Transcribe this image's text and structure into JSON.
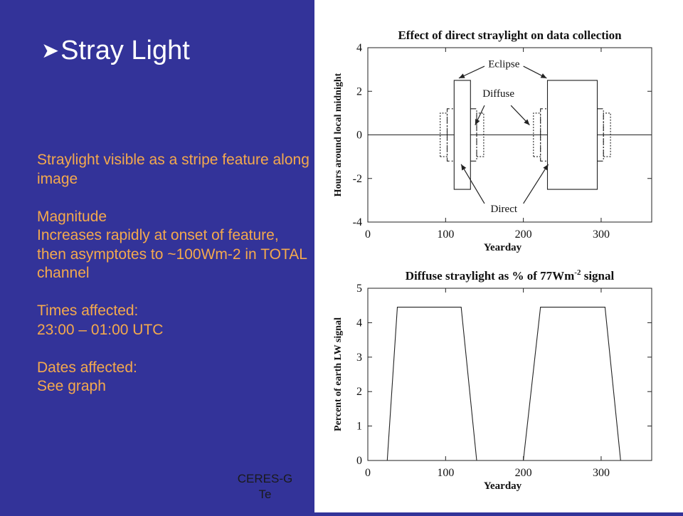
{
  "slide": {
    "title": "Stray Light",
    "title_bullet": "➤",
    "body": "Straylight visible as a stripe feature along image\n\nMagnitude\nIncreases rapidly at onset of feature, then asymptotes to ~100Wm-2 in TOTAL channel\n\nTimes affected:\n23:00 – 01:00 UTC\n\nDates affected:\nSee graph",
    "footer": "CERES-G\nTe",
    "colors": {
      "background": "#333399",
      "title": "#ffffff",
      "body": "#f4a94d"
    }
  },
  "chart_data": [
    {
      "type": "line",
      "title": "Effect of direct straylight on data collection",
      "xlabel": "Yearday",
      "ylabel": "Hours around local midnight",
      "xlim": [
        0,
        365
      ],
      "ylim": [
        -4,
        4
      ],
      "xticks": [
        0,
        100,
        200,
        300
      ],
      "yticks": [
        -4,
        -2,
        0,
        2,
        4
      ],
      "annotations": [
        "Eclipse",
        "Diffuse",
        "Direct"
      ],
      "series": [
        {
          "style": "solid",
          "x": [
            0,
            111,
            111,
            132,
            132,
            231,
            231,
            295,
            295,
            365
          ],
          "y": [
            0,
            0,
            2.5,
            2.5,
            0,
            0,
            2.5,
            2.5,
            0,
            0
          ]
        },
        {
          "style": "solid",
          "x": [
            111,
            111,
            132,
            132
          ],
          "y": [
            0,
            -2.5,
            -2.5,
            0
          ]
        },
        {
          "style": "solid",
          "x": [
            231,
            231,
            295,
            295
          ],
          "y": [
            0,
            -2.5,
            -2.5,
            0
          ]
        },
        {
          "style": "dash-dot",
          "x": [
            102,
            102,
            111
          ],
          "y": [
            0,
            1.2,
            1.2
          ]
        },
        {
          "style": "dash-dot",
          "x": [
            102,
            102,
            111
          ],
          "y": [
            0,
            -1.2,
            -1.2
          ]
        },
        {
          "style": "dash-dot",
          "x": [
            132,
            140,
            140
          ],
          "y": [
            1.2,
            1.2,
            0
          ]
        },
        {
          "style": "dash-dot",
          "x": [
            132,
            140,
            140
          ],
          "y": [
            -1.2,
            -1.2,
            0
          ]
        },
        {
          "style": "dash-dot",
          "x": [
            222,
            222,
            231
          ],
          "y": [
            0,
            1.2,
            1.2
          ]
        },
        {
          "style": "dash-dot",
          "x": [
            222,
            222,
            231
          ],
          "y": [
            0,
            -1.2,
            -1.2
          ]
        },
        {
          "style": "dash-dot",
          "x": [
            295,
            303,
            303
          ],
          "y": [
            1.2,
            1.2,
            0
          ]
        },
        {
          "style": "dash-dot",
          "x": [
            295,
            303,
            303
          ],
          "y": [
            -1.2,
            -1.2,
            0
          ]
        },
        {
          "style": "dotted",
          "x": [
            93,
            93,
            102,
            102,
            93
          ],
          "y": [
            -1,
            1,
            1,
            -1,
            -1
          ]
        },
        {
          "style": "dotted",
          "x": [
            140,
            140,
            149,
            149,
            140
          ],
          "y": [
            -1,
            1,
            1,
            -1,
            -1
          ]
        },
        {
          "style": "dotted",
          "x": [
            213,
            213,
            222,
            222,
            213
          ],
          "y": [
            -1,
            1,
            1,
            -1,
            -1
          ]
        },
        {
          "style": "dotted",
          "x": [
            303,
            303,
            312,
            312,
            303
          ],
          "y": [
            -1,
            1,
            1,
            -1,
            -1
          ]
        }
      ]
    },
    {
      "type": "line",
      "title": "Diffuse straylight as % of 77Wm-2 signal",
      "title_parts": {
        "pre": "Diffuse straylight as % of 77Wm",
        "sup": "-2",
        "post": " signal"
      },
      "xlabel": "Yearday",
      "ylabel": "Percent of earth LW signal",
      "xlim": [
        0,
        365
      ],
      "ylim": [
        0,
        5
      ],
      "xticks": [
        0,
        100,
        200,
        300
      ],
      "yticks": [
        0,
        1,
        2,
        3,
        4,
        5
      ],
      "series": [
        {
          "style": "solid",
          "x": [
            0,
            25,
            38,
            120,
            140,
            200,
            222,
            305,
            325,
            365
          ],
          "y": [
            0,
            0,
            4.45,
            4.45,
            0,
            0,
            4.45,
            4.45,
            0,
            0
          ]
        }
      ]
    }
  ]
}
